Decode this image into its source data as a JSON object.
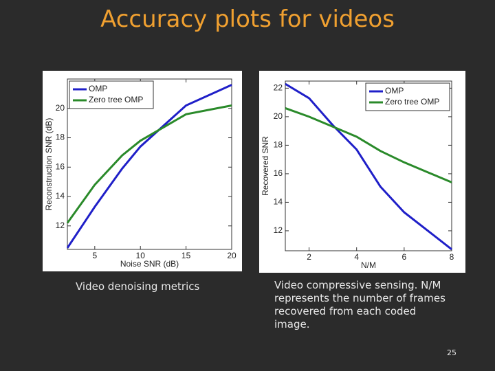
{
  "title": "Accuracy plots for videos",
  "captions": [
    "Video denoising metrics",
    "Video compressive sensing. N/M represents the number of frames recovered from each coded image."
  ],
  "page_number": "25",
  "chart_data": [
    {
      "type": "line",
      "xlabel": "Noise SNR (dB)",
      "ylabel": "Reconstruction SNR (dB)",
      "x": [
        2,
        5,
        8,
        10,
        15,
        20
      ],
      "series": [
        {
          "name": "OMP",
          "color": "#1f1fc8",
          "values": [
            10.5,
            13.3,
            15.9,
            17.4,
            20.2,
            21.6
          ]
        },
        {
          "name": "Zero tree OMP",
          "color": "#2a8a2a",
          "values": [
            12.2,
            14.8,
            16.8,
            17.8,
            19.6,
            20.2
          ]
        }
      ],
      "xlim": [
        2,
        20
      ],
      "xticks": [
        5,
        10,
        15,
        20
      ],
      "ylim": [
        10.4,
        22
      ],
      "yticks": [
        12,
        14,
        16,
        18,
        20
      ],
      "grid": false,
      "legend": "upper left"
    },
    {
      "type": "line",
      "xlabel": "N/M",
      "ylabel": "Recovered SNR",
      "x": [
        1,
        2,
        3,
        4,
        5,
        6,
        7,
        8
      ],
      "series": [
        {
          "name": "OMP",
          "color": "#1f1fc8",
          "values": [
            22.3,
            21.3,
            19.4,
            17.7,
            15.1,
            13.3,
            12.0,
            10.7
          ]
        },
        {
          "name": "Zero tree OMP",
          "color": "#2a8a2a",
          "values": [
            20.6,
            20.0,
            19.3,
            18.6,
            17.6,
            16.8,
            16.1,
            15.4
          ]
        }
      ],
      "xlim": [
        1,
        8
      ],
      "xticks": [
        2,
        4,
        6,
        8
      ],
      "ylim": [
        10.6,
        22.5
      ],
      "yticks": [
        12,
        14,
        16,
        18,
        20,
        22
      ],
      "grid": false,
      "legend": "upper right"
    }
  ]
}
